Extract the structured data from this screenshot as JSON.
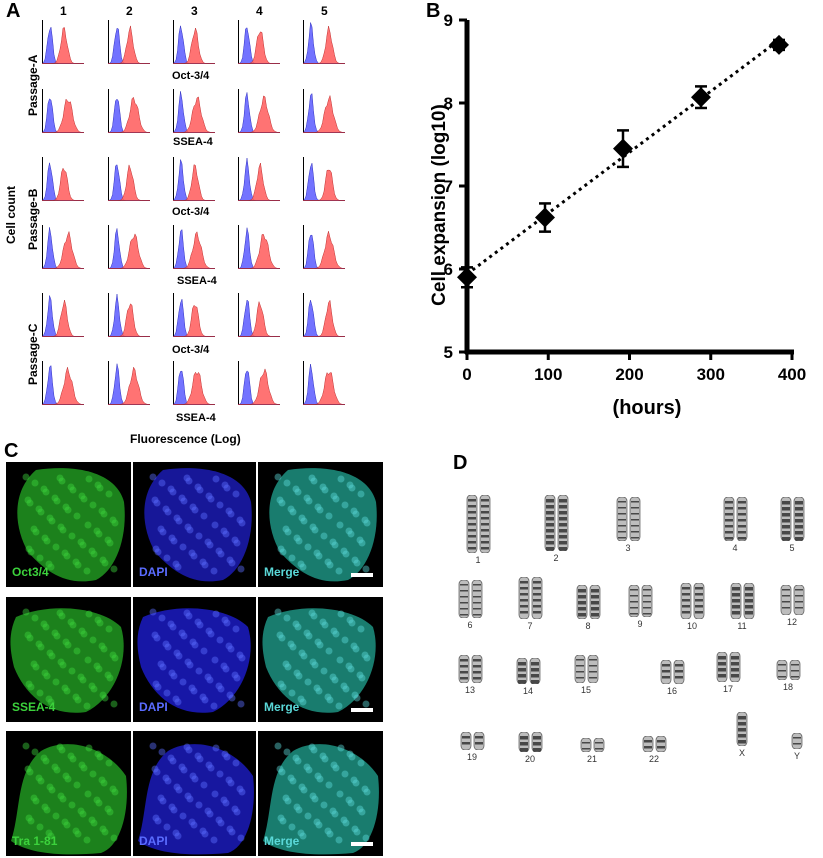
{
  "panel_a": {
    "letter": "A",
    "columns": [
      "1",
      "2",
      "3",
      "4",
      "5"
    ],
    "y_axis_label": "Cell count",
    "x_axis_label": "Fluorescence (Log)",
    "passages": [
      "Passage-A",
      "Passage-B",
      "Passage-C"
    ],
    "markers": [
      "Oct-3/4",
      "SSEA-4",
      "Oct-3/4",
      "SSEA-4",
      "Oct-3/4",
      "SSEA-4"
    ],
    "colors": {
      "isotype": "#5a5aff",
      "stain": "#ff5a5a"
    }
  },
  "panel_b": {
    "letter": "B",
    "chart_data": {
      "type": "scatter",
      "x": [
        0,
        96,
        192,
        288,
        384
      ],
      "y": [
        5.9,
        6.62,
        7.45,
        8.07,
        8.7
      ],
      "y_err": [
        0.12,
        0.17,
        0.22,
        0.13,
        0.06
      ],
      "trendline": "dotted linear",
      "xlabel": "(hours)",
      "ylabel": "Cell expansion (log10)",
      "xlim": [
        0,
        400
      ],
      "ylim": [
        5,
        9
      ],
      "x_ticks": [
        "0",
        "100",
        "200",
        "300",
        "400"
      ],
      "y_ticks": [
        "5",
        "6",
        "7",
        "8",
        "9"
      ]
    }
  },
  "panel_c": {
    "letter": "C",
    "rows": [
      {
        "labels": [
          "Oct3/4",
          "DAPI",
          "Merge"
        ]
      },
      {
        "labels": [
          "SSEA-4",
          "DAPI",
          "Merge"
        ]
      },
      {
        "labels": [
          "Tra 1-81",
          "DAPI",
          "Merge"
        ]
      }
    ],
    "colors": {
      "marker": "#3cd23c",
      "dapi": "#5a6cff",
      "merge": "#5ad8d8"
    }
  },
  "panel_d": {
    "letter": "D",
    "chromosomes": [
      "1",
      "2",
      "3",
      "4",
      "5",
      "6",
      "7",
      "8",
      "9",
      "10",
      "11",
      "12",
      "13",
      "14",
      "15",
      "16",
      "17",
      "18",
      "19",
      "20",
      "21",
      "22",
      "X",
      "Y"
    ]
  }
}
